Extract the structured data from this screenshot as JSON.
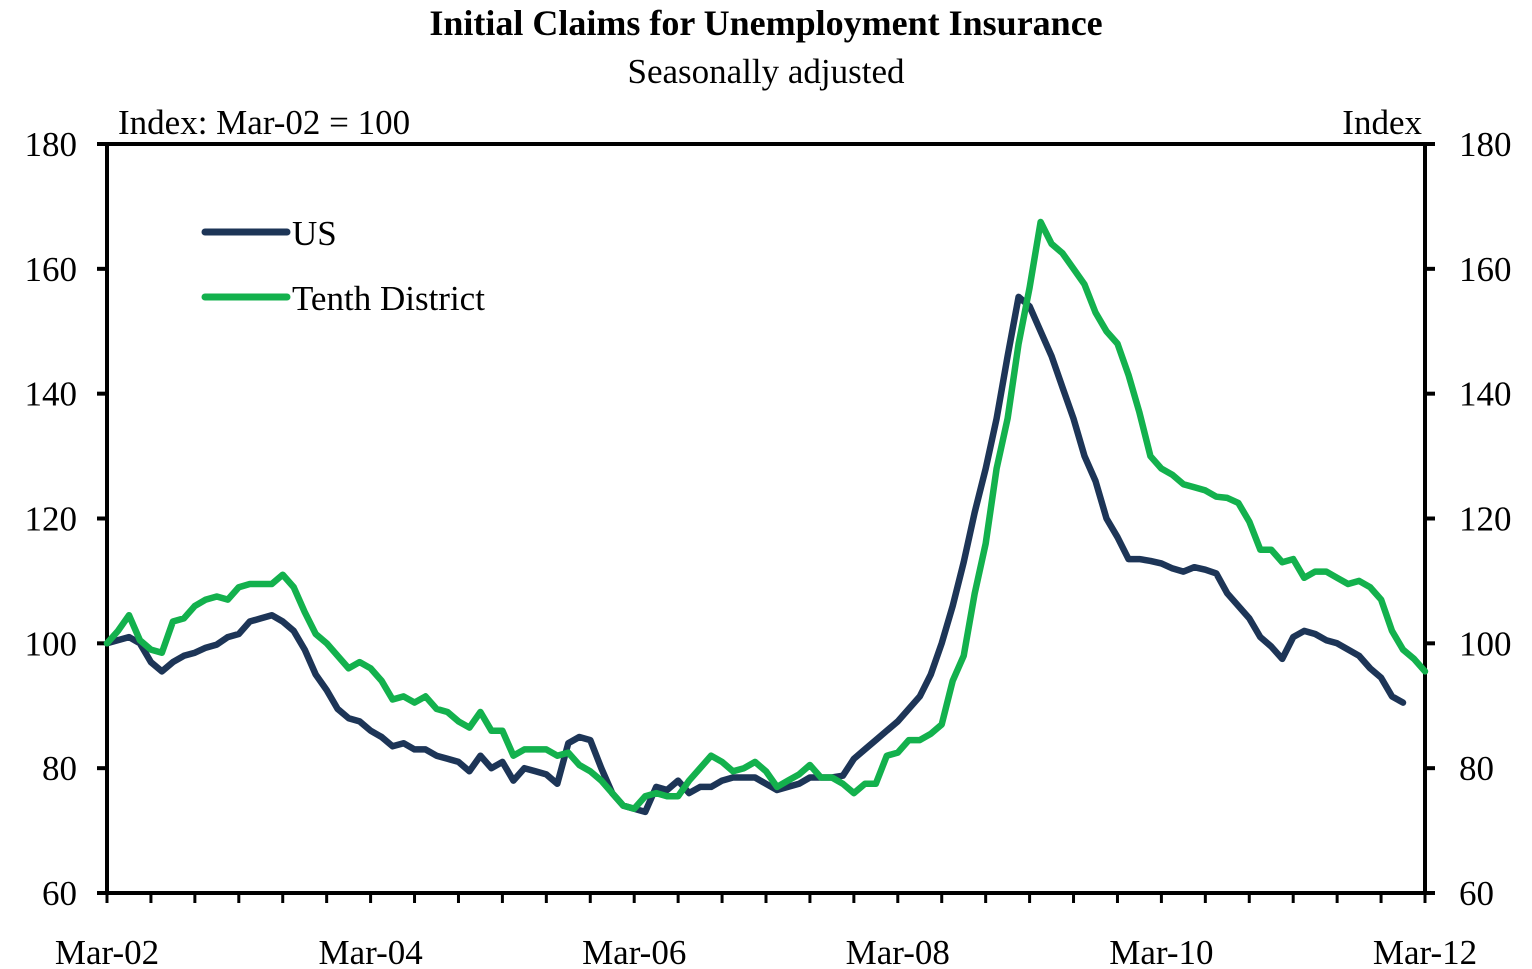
{
  "chart_data": {
    "type": "line",
    "title": "Initial Claims for Unemployment Insurance",
    "subtitle": "Seasonally adjusted",
    "ylabel_left": "Index: Mar-02 = 100",
    "ylabel_right": "Index",
    "ylim": [
      60,
      180
    ],
    "yticks": [
      "60",
      "80",
      "100",
      "120",
      "140",
      "160",
      "180"
    ],
    "x_tick_labels": [
      "Mar-02",
      "Mar-04",
      "Mar-06",
      "Mar-08",
      "Mar-10",
      "Mar-12"
    ],
    "x_start": "Mar-02",
    "x_end": "Mar-12",
    "grid": false,
    "legend_position": "top-left",
    "series": [
      {
        "name": "US",
        "color": "#1d3557",
        "points": [
          [
            0,
            100
          ],
          [
            2,
            101
          ],
          [
            3,
            100
          ],
          [
            4,
            97
          ],
          [
            5,
            95.5
          ],
          [
            6,
            97
          ],
          [
            7,
            98
          ],
          [
            8,
            98.5
          ],
          [
            9,
            99.3
          ],
          [
            10,
            99.8
          ],
          [
            11,
            101
          ],
          [
            12,
            101.5
          ],
          [
            13,
            103.5
          ],
          [
            14,
            104
          ],
          [
            15,
            104.5
          ],
          [
            16,
            103.5
          ],
          [
            17,
            102
          ],
          [
            18,
            99
          ],
          [
            19,
            95
          ],
          [
            20,
            92.5
          ],
          [
            21,
            89.5
          ],
          [
            22,
            88
          ],
          [
            23,
            87.5
          ],
          [
            24,
            86
          ],
          [
            25,
            85
          ],
          [
            26,
            83.5
          ],
          [
            27,
            84
          ],
          [
            28,
            83
          ],
          [
            29,
            83
          ],
          [
            30,
            82
          ],
          [
            31,
            81.5
          ],
          [
            32,
            81
          ],
          [
            33,
            79.5
          ],
          [
            34,
            82
          ],
          [
            35,
            80
          ],
          [
            36,
            81
          ],
          [
            37,
            78
          ],
          [
            38,
            80
          ],
          [
            39,
            79.5
          ],
          [
            40,
            79
          ],
          [
            41,
            77.5
          ],
          [
            42,
            84
          ],
          [
            43,
            85
          ],
          [
            44,
            84.5
          ],
          [
            45,
            80
          ],
          [
            46,
            76
          ],
          [
            47,
            74
          ],
          [
            48,
            73.5
          ],
          [
            49,
            73
          ],
          [
            50,
            77
          ],
          [
            51,
            76.5
          ],
          [
            52,
            78
          ],
          [
            53,
            76
          ],
          [
            54,
            77
          ],
          [
            55,
            77
          ],
          [
            56,
            78
          ],
          [
            57,
            78.5
          ],
          [
            58,
            78.5
          ],
          [
            59,
            78.5
          ],
          [
            60,
            77.5
          ],
          [
            61,
            76.5
          ],
          [
            62,
            77
          ],
          [
            63,
            77.5
          ],
          [
            64,
            78.5
          ],
          [
            65,
            78.5
          ],
          [
            66,
            78.5
          ],
          [
            67,
            78.8
          ],
          [
            68,
            81.5
          ],
          [
            69,
            83
          ],
          [
            70,
            84.5
          ],
          [
            71,
            86
          ],
          [
            72,
            87.5
          ],
          [
            73,
            89.5
          ],
          [
            74,
            91.5
          ],
          [
            75,
            95
          ],
          [
            76,
            100
          ],
          [
            77,
            106
          ],
          [
            78,
            113
          ],
          [
            79,
            121
          ],
          [
            80,
            128
          ],
          [
            81,
            136
          ],
          [
            82,
            146
          ],
          [
            83,
            155.5
          ],
          [
            84,
            154
          ],
          [
            85,
            150
          ],
          [
            86,
            146
          ],
          [
            87,
            141
          ],
          [
            88,
            136
          ],
          [
            89,
            130
          ],
          [
            90,
            126
          ],
          [
            91,
            120
          ],
          [
            92,
            117
          ],
          [
            93,
            113.5
          ],
          [
            94,
            113.5
          ],
          [
            95,
            113.2
          ],
          [
            96,
            112.8
          ],
          [
            97,
            112
          ],
          [
            98,
            111.5
          ],
          [
            99,
            112.2
          ],
          [
            100,
            111.8
          ],
          [
            101,
            111.2
          ],
          [
            102,
            108
          ],
          [
            103,
            106
          ],
          [
            104,
            104
          ],
          [
            105,
            101
          ],
          [
            106,
            99.5
          ],
          [
            107,
            97.5
          ],
          [
            108,
            101
          ],
          [
            109,
            102
          ],
          [
            110,
            101.5
          ],
          [
            111,
            100.5
          ],
          [
            112,
            100
          ],
          [
            113,
            99
          ],
          [
            114,
            98
          ],
          [
            115,
            96
          ],
          [
            116,
            94.5
          ],
          [
            117,
            91.5
          ],
          [
            118,
            90.5
          ]
        ]
      },
      {
        "name": "Tenth District",
        "color": "#13b14d",
        "points": [
          [
            0,
            100
          ],
          [
            1,
            102
          ],
          [
            2,
            104.5
          ],
          [
            3,
            100.5
          ],
          [
            4,
            99
          ],
          [
            5,
            98.5
          ],
          [
            6,
            103.5
          ],
          [
            7,
            104
          ],
          [
            8,
            106
          ],
          [
            9,
            107
          ],
          [
            10,
            107.5
          ],
          [
            11,
            107
          ],
          [
            12,
            109
          ],
          [
            13,
            109.5
          ],
          [
            14,
            109.5
          ],
          [
            15,
            109.5
          ],
          [
            16,
            111
          ],
          [
            17,
            109
          ],
          [
            18,
            105
          ],
          [
            19,
            101.5
          ],
          [
            20,
            100
          ],
          [
            21,
            98
          ],
          [
            22,
            96
          ],
          [
            23,
            97
          ],
          [
            24,
            96
          ],
          [
            25,
            94
          ],
          [
            26,
            91
          ],
          [
            27,
            91.5
          ],
          [
            28,
            90.5
          ],
          [
            29,
            91.5
          ],
          [
            30,
            89.5
          ],
          [
            31,
            89
          ],
          [
            32,
            87.5
          ],
          [
            33,
            86.5
          ],
          [
            34,
            89
          ],
          [
            35,
            86
          ],
          [
            36,
            86
          ],
          [
            37,
            82
          ],
          [
            38,
            83
          ],
          [
            39,
            83
          ],
          [
            40,
            83
          ],
          [
            41,
            82
          ],
          [
            42,
            82.5
          ],
          [
            43,
            80.5
          ],
          [
            44,
            79.5
          ],
          [
            45,
            78
          ],
          [
            46,
            76
          ],
          [
            47,
            74
          ],
          [
            48,
            73.5
          ],
          [
            49,
            75.5
          ],
          [
            50,
            76
          ],
          [
            51,
            75.5
          ],
          [
            52,
            75.5
          ],
          [
            53,
            78
          ],
          [
            54,
            80
          ],
          [
            55,
            82
          ],
          [
            56,
            81
          ],
          [
            57,
            79.5
          ],
          [
            58,
            80
          ],
          [
            59,
            81
          ],
          [
            60,
            79.5
          ],
          [
            61,
            77
          ],
          [
            62,
            78
          ],
          [
            63,
            79
          ],
          [
            64,
            80.5
          ],
          [
            65,
            78.5
          ],
          [
            66,
            78.5
          ],
          [
            67,
            77.5
          ],
          [
            68,
            76
          ],
          [
            69,
            77.5
          ],
          [
            70,
            77.5
          ],
          [
            71,
            82
          ],
          [
            72,
            82.5
          ],
          [
            73,
            84.5
          ],
          [
            74,
            84.5
          ],
          [
            75,
            85.5
          ],
          [
            76,
            87
          ],
          [
            77,
            94
          ],
          [
            78,
            98
          ],
          [
            79,
            108
          ],
          [
            80,
            116
          ],
          [
            81,
            128
          ],
          [
            82,
            136
          ],
          [
            83,
            148
          ],
          [
            84,
            157
          ],
          [
            85,
            167.5
          ],
          [
            86,
            164
          ],
          [
            87,
            162.5
          ],
          [
            88,
            160
          ],
          [
            89,
            157.5
          ],
          [
            90,
            153
          ],
          [
            91,
            150
          ],
          [
            92,
            148
          ],
          [
            93,
            143
          ],
          [
            94,
            137
          ],
          [
            95,
            130
          ],
          [
            96,
            128
          ],
          [
            97,
            127
          ],
          [
            98,
            125.5
          ],
          [
            99,
            125
          ],
          [
            100,
            124.5
          ],
          [
            101,
            123.5
          ],
          [
            102,
            123.3
          ],
          [
            103,
            122.5
          ],
          [
            104,
            119.5
          ],
          [
            105,
            115
          ],
          [
            106,
            115
          ],
          [
            107,
            113
          ],
          [
            108,
            113.5
          ],
          [
            109,
            110.5
          ],
          [
            110,
            111.5
          ],
          [
            111,
            111.5
          ],
          [
            112,
            110.5
          ],
          [
            113,
            109.5
          ],
          [
            114,
            110
          ],
          [
            115,
            109
          ],
          [
            116,
            107
          ],
          [
            117,
            102
          ],
          [
            118,
            99
          ],
          [
            119,
            97.5
          ],
          [
            120,
            95.5
          ]
        ]
      }
    ]
  }
}
